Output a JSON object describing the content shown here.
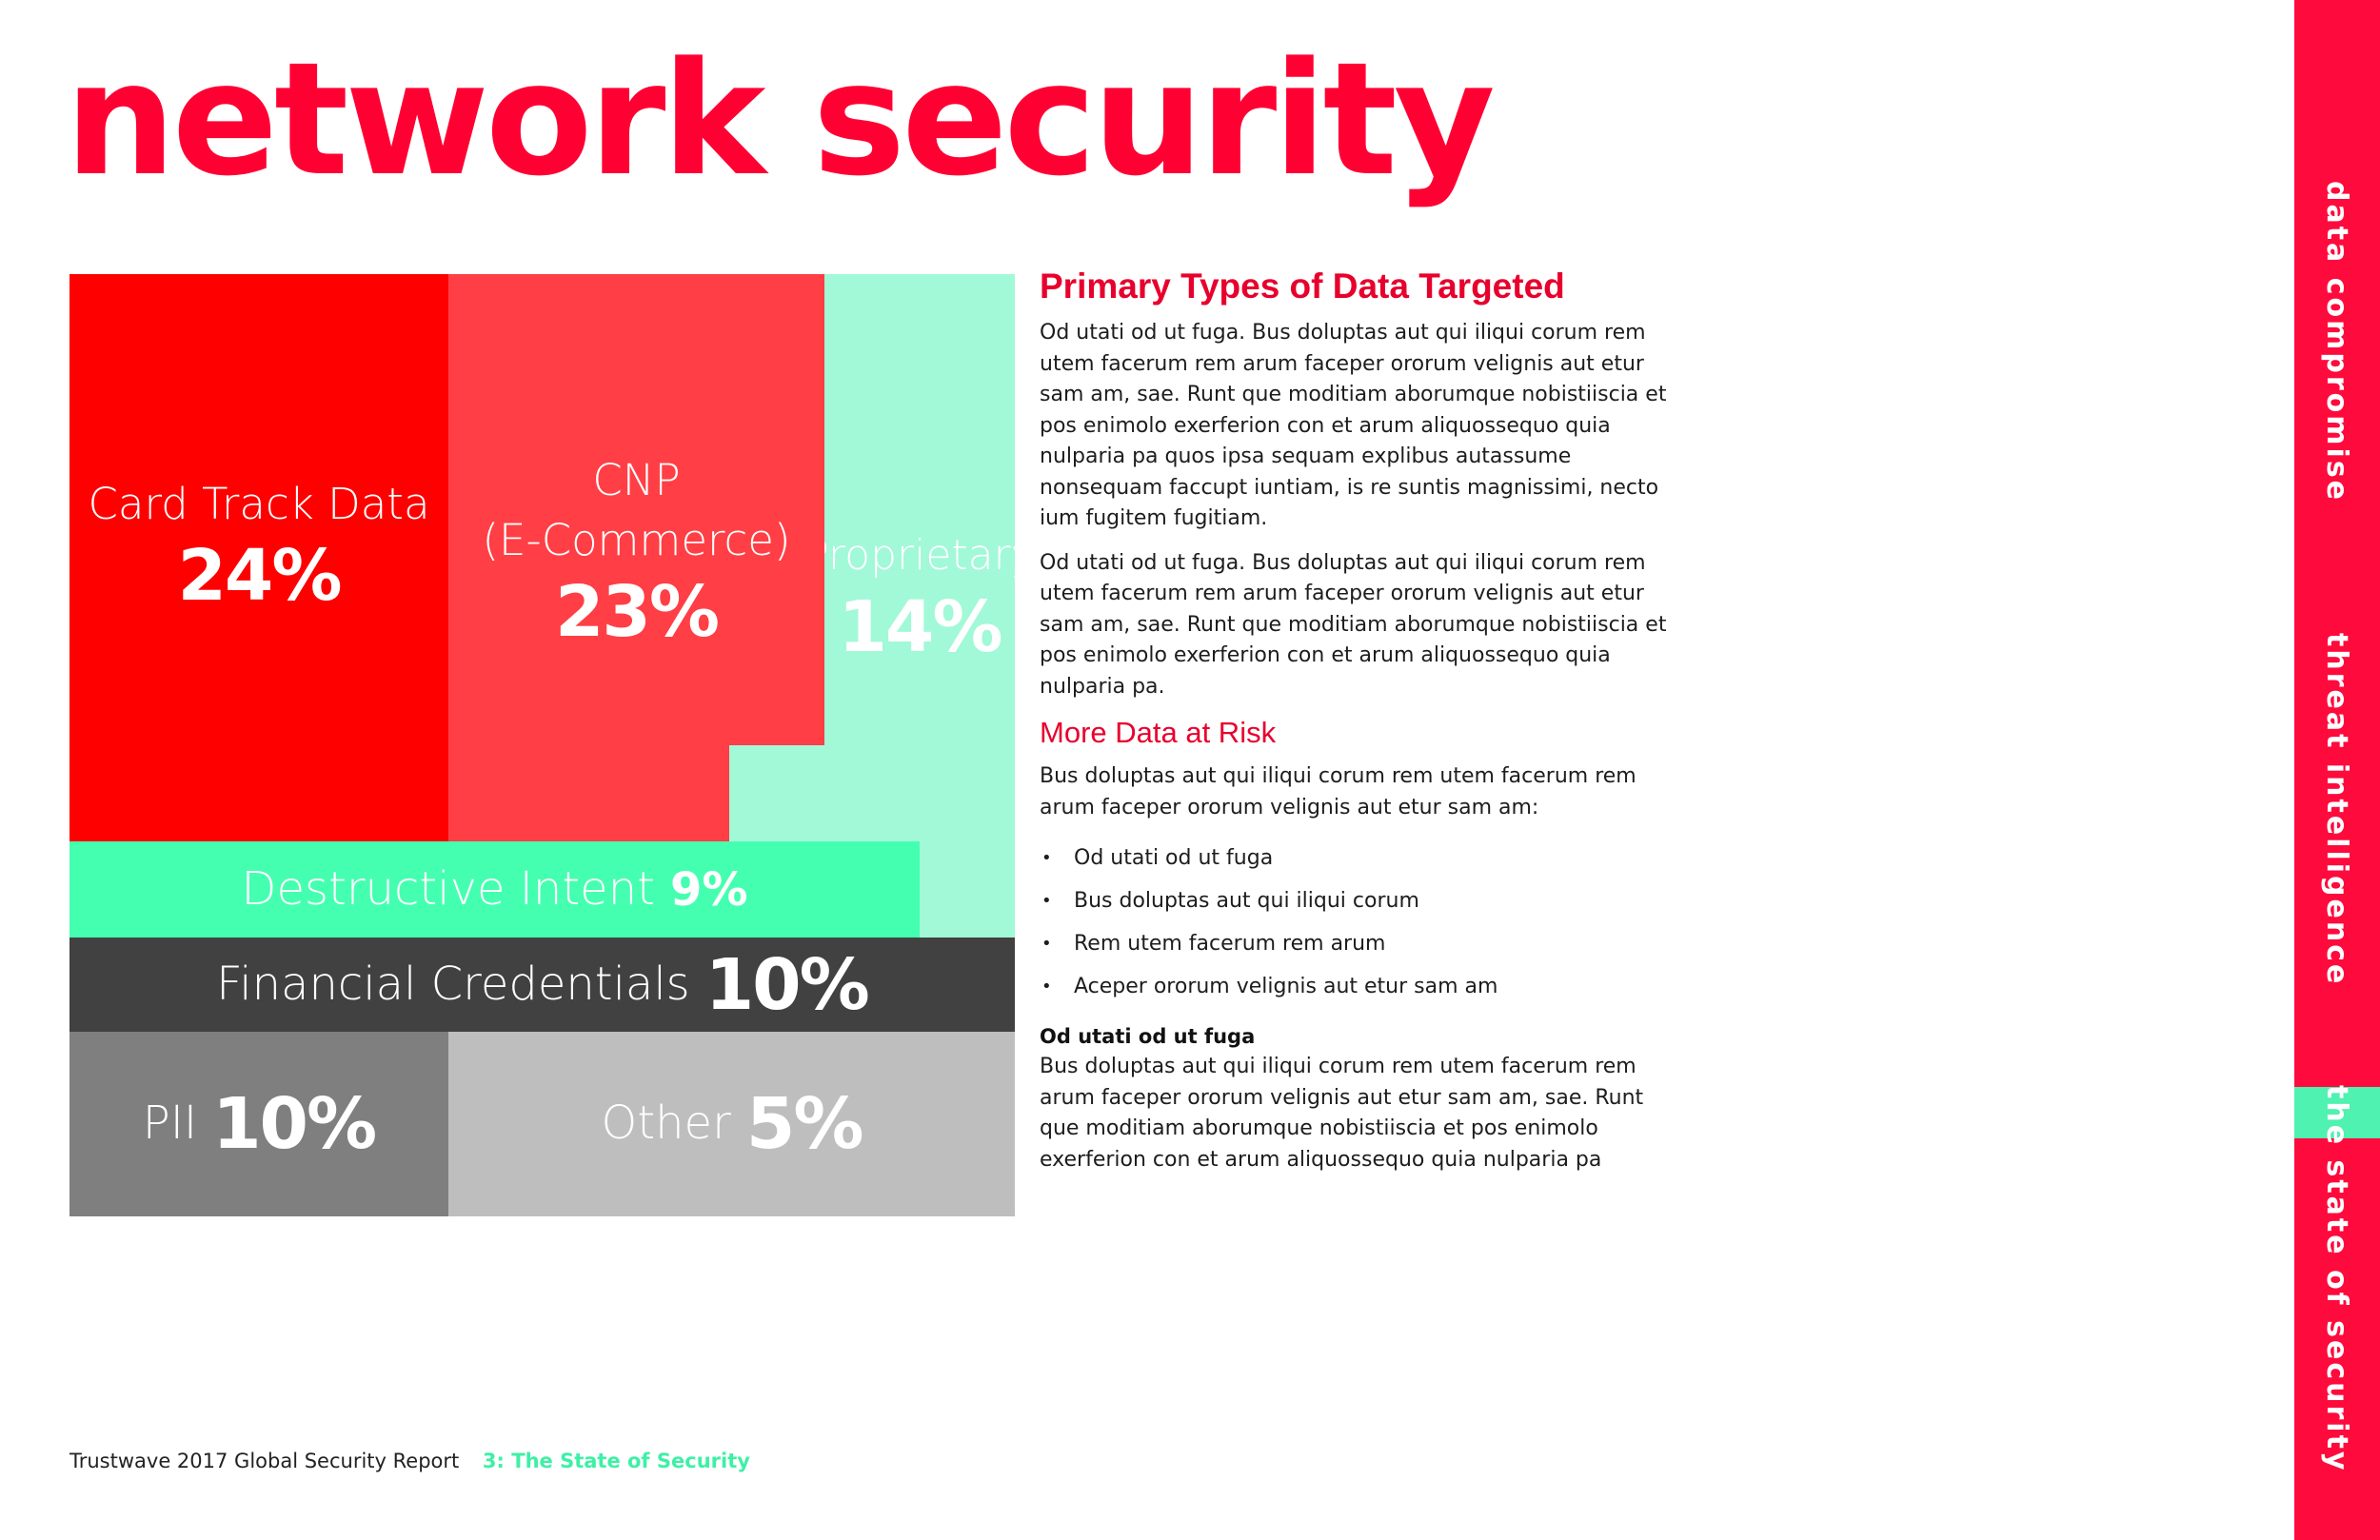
{
  "page": {
    "title": "network security"
  },
  "treemap": {
    "tiles": [
      {
        "label": "Card Track Data",
        "value": "24%",
        "color": "#ff0000"
      },
      {
        "label_line1": "CNP",
        "label_line2": "(E-Commerce)",
        "value": "23%",
        "color": "#ff3f45"
      },
      {
        "label": "Proprietary",
        "value": "14%",
        "color": "#a2f9d7"
      },
      {
        "label": "Destructive Intent",
        "value": "9%",
        "color": "#45ffb0"
      },
      {
        "label": "Financial Credentials",
        "value": "10%",
        "color": "#414141"
      },
      {
        "label": "PII",
        "value": "10%",
        "color": "#7f7f7f"
      },
      {
        "label": "Other",
        "value": "5%",
        "color": "#bebebe"
      }
    ]
  },
  "article": {
    "heading": "Primary Types of Data Targeted",
    "para1": "Od utati od ut fuga. Bus doluptas aut qui iliqui corum rem utem facerum rem arum faceper ororum velignis aut etur sam am, sae. Runt que moditiam aborumque nobistiiscia et pos enimolo exerferion con et arum aliquossequo quia nulparia pa quos ipsa sequam explibus autassume nonsequam faccupt iuntiam, is re suntis magnissimi, necto ium fugitem fugitiam.",
    "para2": "Od utati od ut fuga. Bus doluptas aut qui iliqui corum rem utem facerum rem arum faceper ororum velignis aut etur sam am, sae. Runt que moditiam aborumque nobistiiscia et pos enimolo exerferion con et arum aliquossequo quia nulparia pa.",
    "subheading": "More Data at Risk",
    "intro": "Bus doluptas aut qui iliqui corum rem utem facerum rem arum faceper ororum velignis aut etur sam am:",
    "bullets": [
      "Od utati od ut fuga",
      "Bus doluptas aut qui iliqui corum",
      "Rem utem facerum rem arum",
      "Aceper ororum velignis aut etur sam am"
    ],
    "bold_label": "Od utati od ut fuga",
    "para3": "Bus doluptas aut qui iliqui corum rem utem facerum rem arum faceper ororum velignis aut etur sam am, sae. Runt que moditiam aborumque nobistiiscia et pos enimolo exerferion con et arum aliquossequo quia nulparia pa"
  },
  "footer": {
    "report": "Trustwave 2017 Global Security Report",
    "section": "3: The State of Security"
  },
  "side_nav": {
    "items": [
      "data compromise",
      "threat intelligence",
      "the state of security"
    ],
    "active_index": 2,
    "band_color": "#ff0a3c",
    "active_color": "#4ff2b0"
  }
}
